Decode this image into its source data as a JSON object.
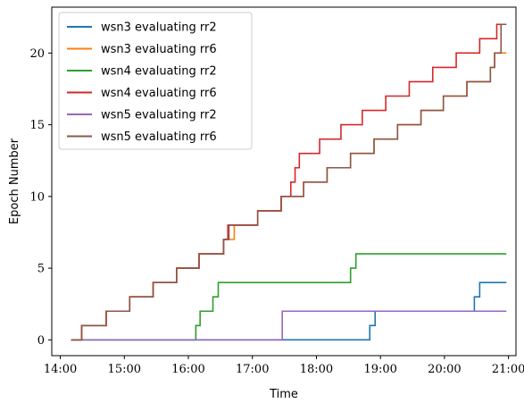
{
  "chart_data": {
    "type": "line",
    "step": "post",
    "title": "",
    "xlabel": "Time",
    "ylabel": "Epoch Number",
    "xlim": [
      "13:52",
      "21:07"
    ],
    "ylim": [
      -1.1,
      23.2
    ],
    "xticks": [
      "14:00",
      "15:00",
      "16:00",
      "17:00",
      "18:00",
      "19:00",
      "20:00",
      "21:00"
    ],
    "yticks": [
      0,
      5,
      10,
      15,
      20
    ],
    "grid": false,
    "legend_position": "top-left",
    "series": [
      {
        "name": "wsn3 evaluating rr2",
        "color": "#1f77b4",
        "points": [
          [
            "14:10",
            0
          ],
          [
            "18:50",
            1
          ],
          [
            "18:55",
            2
          ],
          [
            "20:28",
            3
          ],
          [
            "20:33",
            4
          ],
          [
            "20:58",
            4
          ]
        ]
      },
      {
        "name": "wsn3 evaluating rr6",
        "color": "#ff7f0e",
        "points": [
          [
            "14:10",
            0
          ],
          [
            "14:20",
            1
          ],
          [
            "14:43",
            2
          ],
          [
            "15:05",
            3
          ],
          [
            "15:27",
            4
          ],
          [
            "15:49",
            5
          ],
          [
            "16:10",
            6
          ],
          [
            "16:33",
            7
          ],
          [
            "16:43",
            8
          ],
          [
            "17:05",
            9
          ],
          [
            "17:27",
            10
          ],
          [
            "17:48",
            11
          ],
          [
            "18:10",
            12
          ],
          [
            "18:32",
            13
          ],
          [
            "18:54",
            14
          ],
          [
            "19:16",
            15
          ],
          [
            "19:38",
            16
          ],
          [
            "19:59",
            17
          ],
          [
            "20:21",
            18
          ],
          [
            "20:43",
            19
          ],
          [
            "20:47",
            20
          ],
          [
            "20:58",
            20
          ]
        ]
      },
      {
        "name": "wsn4 evaluating rr2",
        "color": "#2ca02c",
        "points": [
          [
            "14:10",
            0
          ],
          [
            "16:07",
            1
          ],
          [
            "16:11",
            2
          ],
          [
            "16:23",
            3
          ],
          [
            "16:28",
            4
          ],
          [
            "18:32",
            5
          ],
          [
            "18:37",
            6
          ],
          [
            "20:58",
            6
          ]
        ]
      },
      {
        "name": "wsn4 evaluating rr6",
        "color": "#d62728",
        "points": [
          [
            "14:10",
            0
          ],
          [
            "14:20",
            1
          ],
          [
            "14:43",
            2
          ],
          [
            "15:05",
            3
          ],
          [
            "15:27",
            4
          ],
          [
            "15:49",
            5
          ],
          [
            "16:10",
            6
          ],
          [
            "16:33",
            7
          ],
          [
            "16:37",
            8
          ],
          [
            "17:05",
            9
          ],
          [
            "17:27",
            10
          ],
          [
            "17:36",
            11
          ],
          [
            "17:40",
            12
          ],
          [
            "17:44",
            13
          ],
          [
            "18:03",
            14
          ],
          [
            "18:23",
            15
          ],
          [
            "18:43",
            16
          ],
          [
            "19:05",
            17
          ],
          [
            "19:27",
            18
          ],
          [
            "19:49",
            19
          ],
          [
            "20:11",
            20
          ],
          [
            "20:33",
            21
          ],
          [
            "20:49",
            22
          ],
          [
            "20:58",
            22
          ]
        ]
      },
      {
        "name": "wsn5 evaluating rr2",
        "color": "#9467bd",
        "points": [
          [
            "14:10",
            0
          ],
          [
            "17:28",
            2
          ],
          [
            "20:58",
            2
          ]
        ]
      },
      {
        "name": "wsn5 evaluating rr6",
        "color": "#8c564b",
        "points": [
          [
            "14:10",
            0
          ],
          [
            "14:20",
            1
          ],
          [
            "14:43",
            2
          ],
          [
            "15:05",
            3
          ],
          [
            "15:27",
            4
          ],
          [
            "15:49",
            5
          ],
          [
            "16:10",
            6
          ],
          [
            "16:33",
            7
          ],
          [
            "16:38",
            8
          ],
          [
            "17:05",
            9
          ],
          [
            "17:27",
            10
          ],
          [
            "17:48",
            11
          ],
          [
            "18:10",
            12
          ],
          [
            "18:32",
            13
          ],
          [
            "18:54",
            14
          ],
          [
            "19:16",
            15
          ],
          [
            "19:38",
            16
          ],
          [
            "19:59",
            17
          ],
          [
            "20:21",
            18
          ],
          [
            "20:43",
            19
          ],
          [
            "20:47",
            20
          ],
          [
            "20:53",
            22
          ],
          [
            "20:58",
            22
          ]
        ]
      }
    ]
  }
}
